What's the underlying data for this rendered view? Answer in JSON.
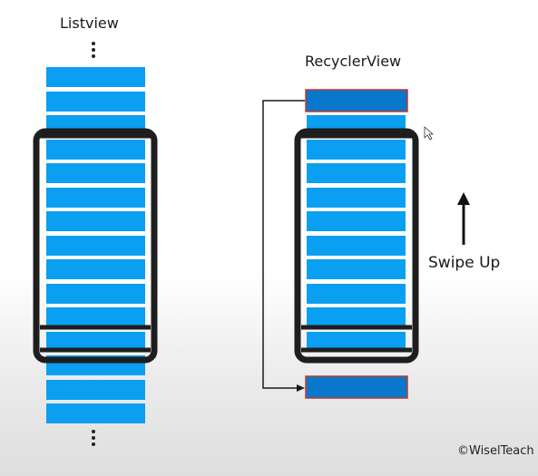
{
  "listview": {
    "title": "Listview"
  },
  "recyclerview": {
    "title": "RecyclerView"
  },
  "swipe": {
    "label": "Swipe Up"
  },
  "credit": {
    "text": "©WiselTeach"
  },
  "colors": {
    "item_blue": "#0a9ff0",
    "item_recycled": "#0877cc",
    "recycled_border": "#c0392b",
    "phone": "#1e1e1e",
    "arrow": "#111111"
  }
}
